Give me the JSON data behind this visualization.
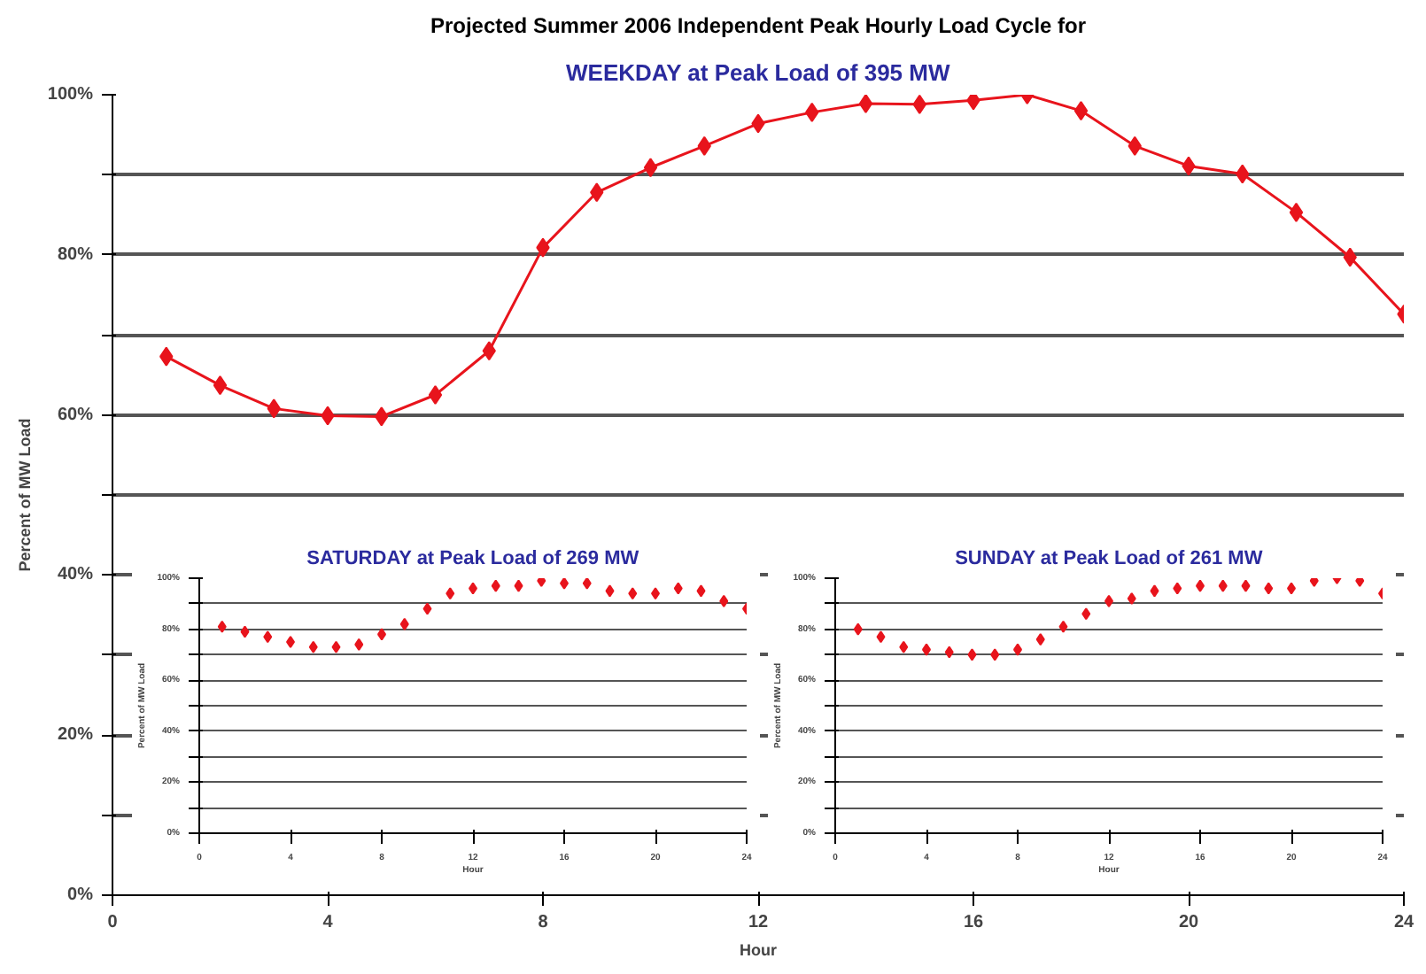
{
  "chart_data": [
    {
      "type": "line",
      "title": "Projected Summer 2006 Independent Peak Hourly Load Cycle for",
      "subtitle": "WEEKDAY at Peak Load of 395 MW",
      "xlabel": "Hour",
      "ylabel": "Percent of MW Load",
      "x": [
        1,
        2,
        3,
        4,
        5,
        6,
        7,
        8,
        9,
        10,
        11,
        12,
        13,
        14,
        15,
        16,
        17,
        18,
        19,
        20,
        21,
        22,
        23,
        24
      ],
      "series": [
        {
          "color": "#e8141c",
          "values": [
            67.3,
            63.7,
            60.8,
            59.9,
            59.8,
            62.5,
            68.0,
            80.9,
            87.8,
            90.9,
            93.6,
            96.4,
            97.8,
            98.9,
            98.8,
            99.3,
            100,
            98.0,
            93.6,
            91.1,
            90.1,
            85.3,
            79.7,
            72.6
          ]
        }
      ],
      "xlim": [
        0,
        24
      ],
      "xticks": [
        0,
        4,
        8,
        12,
        16,
        20,
        24
      ],
      "ylim": [
        0,
        100
      ],
      "yticks": [
        {
          "value": 0,
          "label": "0%"
        },
        {
          "value": 10,
          "label": null
        },
        {
          "value": 20,
          "label": "20%"
        },
        {
          "value": 30,
          "label": null
        },
        {
          "value": 40,
          "label": "40%"
        },
        {
          "value": 50,
          "label": null
        },
        {
          "value": 60,
          "label": "60%"
        },
        {
          "value": 70,
          "label": null
        },
        {
          "value": 80,
          "label": "80%"
        },
        {
          "value": 90,
          "label": null
        },
        {
          "value": 100,
          "label": "100%"
        }
      ],
      "grid": "y",
      "marker": "diamond"
    },
    {
      "type": "scatter",
      "title": "SATURDAY at Peak Load of 269 MW",
      "xlabel": "Hour",
      "ylabel": "Percent of MW Load",
      "x": [
        1,
        2,
        3,
        4,
        5,
        6,
        7,
        8,
        9,
        10,
        11,
        12,
        13,
        14,
        15,
        16,
        17,
        18,
        19,
        20,
        21,
        22,
        23,
        24
      ],
      "series": [
        {
          "color": "#e8141c",
          "values": [
            81,
            79,
            77,
            75,
            73,
            73,
            74,
            78,
            82,
            88,
            94,
            96,
            97,
            97,
            99,
            98,
            98,
            95,
            94,
            94,
            96,
            95,
            91,
            88
          ]
        }
      ],
      "xlim": [
        0,
        24
      ],
      "xticks": [
        0,
        4,
        8,
        12,
        16,
        20,
        24
      ],
      "ylim": [
        0,
        100
      ],
      "yticks": [
        {
          "value": 0,
          "label": "0%"
        },
        {
          "value": 10,
          "label": null
        },
        {
          "value": 20,
          "label": "20%"
        },
        {
          "value": 30,
          "label": null
        },
        {
          "value": 40,
          "label": "40%"
        },
        {
          "value": 50,
          "label": null
        },
        {
          "value": 60,
          "label": "60%"
        },
        {
          "value": 70,
          "label": null
        },
        {
          "value": 80,
          "label": "80%"
        },
        {
          "value": 90,
          "label": null
        },
        {
          "value": 100,
          "label": "100%"
        }
      ],
      "grid": "y",
      "marker": "diamond"
    },
    {
      "type": "scatter",
      "title": "SUNDAY at Peak Load of 261 MW",
      "xlabel": "Hour",
      "ylabel": "Percent of MW Load",
      "x": [
        1,
        2,
        3,
        4,
        5,
        6,
        7,
        8,
        9,
        10,
        11,
        12,
        13,
        14,
        15,
        16,
        17,
        18,
        19,
        20,
        21,
        22,
        23,
        24
      ],
      "series": [
        {
          "color": "#e8141c",
          "values": [
            80,
            77,
            73,
            72,
            71,
            70,
            70,
            72,
            76,
            81,
            86,
            91,
            92,
            95,
            96,
            97,
            97,
            97,
            96,
            96,
            99,
            100,
            99,
            94
          ]
        }
      ],
      "xlim": [
        0,
        24
      ],
      "xticks": [
        0,
        4,
        8,
        12,
        16,
        20,
        24
      ],
      "ylim": [
        0,
        100
      ],
      "yticks": [
        {
          "value": 0,
          "label": "0%"
        },
        {
          "value": 10,
          "label": null
        },
        {
          "value": 20,
          "label": "20%"
        },
        {
          "value": 30,
          "label": null
        },
        {
          "value": 40,
          "label": "40%"
        },
        {
          "value": 50,
          "label": null
        },
        {
          "value": 60,
          "label": "60%"
        },
        {
          "value": 70,
          "label": null
        },
        {
          "value": 80,
          "label": "80%"
        },
        {
          "value": 90,
          "label": null
        },
        {
          "value": 100,
          "label": "100%"
        }
      ],
      "grid": "y",
      "marker": "diamond"
    }
  ]
}
